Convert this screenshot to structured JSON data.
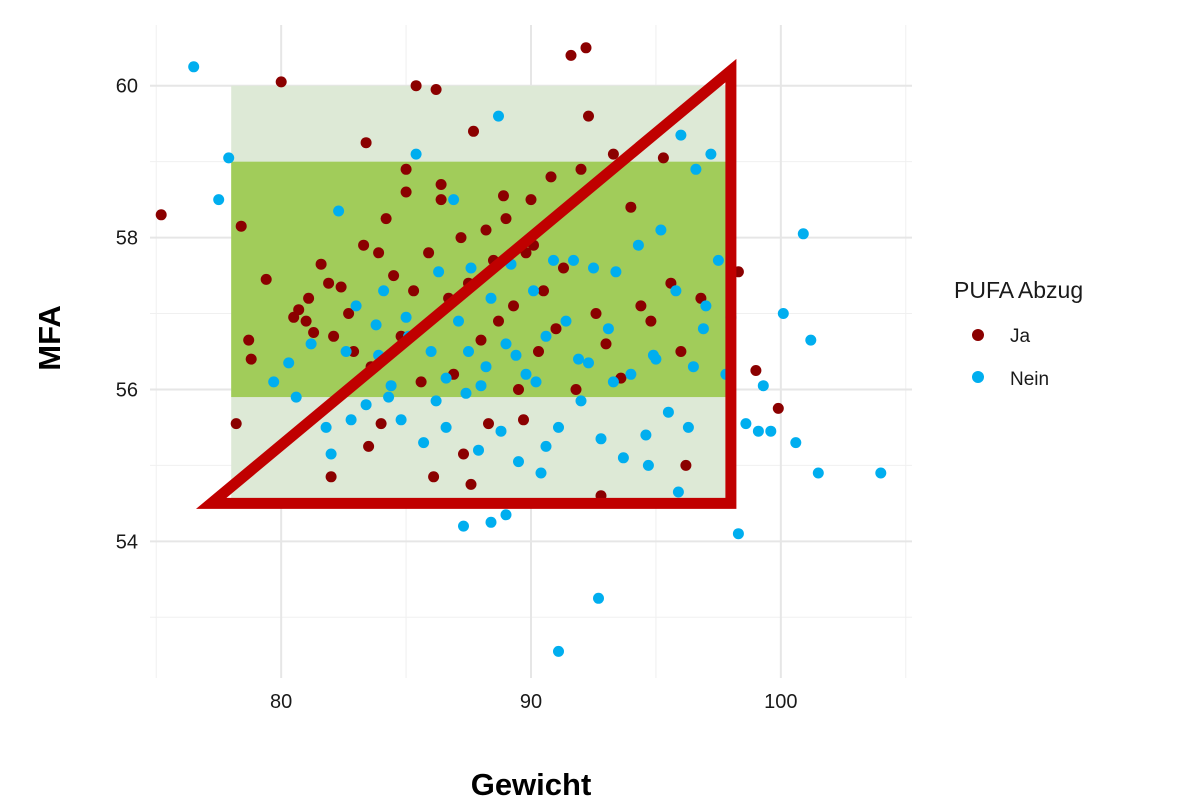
{
  "chart_data": {
    "type": "scatter",
    "title": "",
    "xlabel": "Gewicht",
    "ylabel": "MFA",
    "xlim": [
      74.75,
      105.25
    ],
    "ylim": [
      52.2,
      60.8
    ],
    "x_ticks": [
      80,
      90,
      100
    ],
    "y_ticks": [
      54,
      56,
      58,
      60
    ],
    "grid": true,
    "legend": {
      "title": "PUFA Abzug",
      "placement": "right",
      "entries": [
        {
          "label": "Ja",
          "color": "#8b0000"
        },
        {
          "label": "Nein",
          "color": "#00aeef"
        }
      ]
    },
    "annotations": {
      "light_band": {
        "x": [
          78,
          98
        ],
        "y": [
          54.5,
          60
        ],
        "color": "#dde9d6"
      },
      "dark_band": {
        "x": [
          78,
          98
        ],
        "y": [
          55.9,
          59
        ],
        "color": "#a1cc5a"
      },
      "triangle": {
        "points": [
          [
            77.2,
            54.5
          ],
          [
            98,
            54.5
          ],
          [
            98,
            60.2
          ]
        ],
        "color": "#c00000"
      }
    },
    "series": [
      {
        "name": "Ja",
        "color": "#8b0000",
        "points": [
          [
            75.2,
            58.3
          ],
          [
            78.2,
            55.55
          ],
          [
            78.4,
            58.15
          ],
          [
            78.7,
            56.65
          ],
          [
            78.8,
            56.4
          ],
          [
            79.4,
            57.45
          ],
          [
            80,
            60.05
          ],
          [
            80.5,
            56.95
          ],
          [
            80.7,
            57.05
          ],
          [
            81.0,
            56.9
          ],
          [
            81.1,
            57.2
          ],
          [
            81.3,
            56.75
          ],
          [
            81.6,
            57.65
          ],
          [
            81.9,
            57.4
          ],
          [
            82.1,
            56.7
          ],
          [
            82.4,
            57.35
          ],
          [
            82.7,
            57.0
          ],
          [
            82.9,
            56.5
          ],
          [
            83.3,
            57.9
          ],
          [
            83.6,
            56.3
          ],
          [
            83.9,
            57.8
          ],
          [
            84.2,
            58.25
          ],
          [
            84.5,
            57.5
          ],
          [
            84.8,
            56.7
          ],
          [
            85.0,
            58.6
          ],
          [
            85.3,
            57.3
          ],
          [
            85.6,
            56.1
          ],
          [
            85.9,
            57.8
          ],
          [
            86.2,
            59.95
          ],
          [
            86.4,
            58.5
          ],
          [
            86.7,
            57.2
          ],
          [
            86.9,
            56.2
          ],
          [
            87.2,
            58.0
          ],
          [
            87.5,
            57.4
          ],
          [
            87.7,
            59.4
          ],
          [
            88.0,
            56.65
          ],
          [
            88.2,
            58.1
          ],
          [
            88.5,
            57.7
          ],
          [
            88.7,
            56.9
          ],
          [
            89.0,
            58.25
          ],
          [
            89.3,
            57.1
          ],
          [
            89.5,
            56.0
          ],
          [
            89.8,
            57.8
          ],
          [
            90.0,
            58.5
          ],
          [
            90.3,
            56.5
          ],
          [
            90.5,
            57.3
          ],
          [
            90.8,
            58.8
          ],
          [
            91.0,
            56.8
          ],
          [
            91.3,
            57.6
          ],
          [
            91.6,
            60.4
          ],
          [
            92.2,
            60.5
          ],
          [
            92.3,
            59.6
          ],
          [
            92.0,
            58.9
          ],
          [
            92.6,
            57.0
          ],
          [
            93.0,
            56.6
          ],
          [
            93.3,
            59.1
          ],
          [
            93.6,
            56.15
          ],
          [
            94.0,
            58.4
          ],
          [
            94.4,
            57.1
          ],
          [
            94.8,
            56.9
          ],
          [
            95.3,
            59.05
          ],
          [
            95.6,
            57.4
          ],
          [
            96.0,
            56.5
          ],
          [
            96.2,
            55.0
          ],
          [
            96.8,
            57.2
          ],
          [
            98.3,
            57.55
          ],
          [
            99.0,
            56.25
          ],
          [
            99.9,
            55.75
          ],
          [
            83.4,
            59.25
          ],
          [
            84.0,
            55.55
          ],
          [
            85.4,
            60.0
          ],
          [
            86.1,
            54.85
          ],
          [
            87.6,
            54.75
          ],
          [
            88.3,
            55.55
          ],
          [
            92.8,
            54.6
          ],
          [
            82.0,
            54.85
          ],
          [
            83.5,
            55.25
          ],
          [
            87.3,
            55.15
          ],
          [
            89.7,
            55.6
          ],
          [
            91.8,
            56.0
          ],
          [
            85.0,
            58.9
          ],
          [
            86.4,
            58.7
          ],
          [
            88.9,
            58.55
          ],
          [
            90.1,
            57.9
          ]
        ]
      },
      {
        "name": "Nein",
        "color": "#00aeef",
        "points": [
          [
            76.5,
            60.25
          ],
          [
            77.5,
            58.5
          ],
          [
            77.9,
            59.05
          ],
          [
            79.7,
            56.1
          ],
          [
            80.3,
            56.35
          ],
          [
            80.6,
            55.9
          ],
          [
            81.2,
            56.6
          ],
          [
            81.8,
            55.5
          ],
          [
            82.0,
            55.15
          ],
          [
            82.3,
            58.35
          ],
          [
            82.6,
            56.5
          ],
          [
            83.0,
            57.1
          ],
          [
            83.4,
            55.8
          ],
          [
            83.8,
            56.85
          ],
          [
            84.1,
            57.3
          ],
          [
            84.4,
            56.05
          ],
          [
            84.8,
            55.6
          ],
          [
            85.1,
            56.7
          ],
          [
            85.4,
            59.1
          ],
          [
            85.7,
            55.3
          ],
          [
            86.0,
            56.5
          ],
          [
            86.3,
            57.55
          ],
          [
            86.6,
            55.5
          ],
          [
            86.9,
            58.5
          ],
          [
            87.1,
            56.9
          ],
          [
            87.4,
            55.95
          ],
          [
            87.6,
            57.6
          ],
          [
            87.9,
            55.2
          ],
          [
            88.2,
            56.3
          ],
          [
            88.4,
            57.2
          ],
          [
            88.7,
            59.6
          ],
          [
            89.0,
            56.6
          ],
          [
            89.2,
            57.65
          ],
          [
            89.5,
            55.05
          ],
          [
            89.8,
            56.2
          ],
          [
            90.1,
            57.3
          ],
          [
            90.4,
            54.9
          ],
          [
            90.6,
            56.7
          ],
          [
            90.9,
            57.7
          ],
          [
            91.1,
            55.5
          ],
          [
            91.4,
            56.9
          ],
          [
            91.7,
            57.7
          ],
          [
            92.0,
            55.85
          ],
          [
            92.3,
            56.35
          ],
          [
            92.5,
            57.6
          ],
          [
            92.8,
            55.35
          ],
          [
            93.1,
            56.8
          ],
          [
            93.4,
            57.55
          ],
          [
            93.7,
            55.1
          ],
          [
            94.0,
            56.2
          ],
          [
            94.3,
            57.9
          ],
          [
            94.6,
            55.4
          ],
          [
            94.9,
            56.45
          ],
          [
            95.2,
            58.1
          ],
          [
            95.5,
            55.7
          ],
          [
            95.8,
            57.3
          ],
          [
            96.0,
            59.35
          ],
          [
            96.3,
            55.5
          ],
          [
            96.6,
            58.9
          ],
          [
            96.9,
            56.8
          ],
          [
            97.2,
            59.1
          ],
          [
            97.5,
            57.7
          ],
          [
            97.8,
            56.2
          ],
          [
            98.3,
            54.1
          ],
          [
            98.6,
            55.55
          ],
          [
            99.1,
            55.45
          ],
          [
            99.6,
            55.45
          ],
          [
            100.1,
            57.0
          ],
          [
            100.6,
            55.3
          ],
          [
            100.9,
            58.05
          ],
          [
            101.2,
            56.65
          ],
          [
            101.5,
            54.9
          ],
          [
            104.0,
            54.9
          ],
          [
            87.3,
            54.2
          ],
          [
            88.4,
            54.25
          ],
          [
            89.0,
            54.35
          ],
          [
            92.7,
            53.25
          ],
          [
            91.1,
            52.55
          ],
          [
            84.3,
            55.9
          ],
          [
            85.0,
            56.95
          ],
          [
            86.6,
            56.15
          ],
          [
            87.5,
            56.5
          ],
          [
            88.0,
            56.05
          ],
          [
            89.4,
            56.45
          ],
          [
            90.2,
            56.1
          ],
          [
            91.9,
            56.4
          ],
          [
            93.3,
            56.1
          ],
          [
            95.0,
            56.4
          ],
          [
            96.5,
            56.3
          ],
          [
            97.0,
            57.1
          ],
          [
            98.0,
            56.95
          ],
          [
            99.3,
            56.05
          ],
          [
            82.8,
            55.6
          ],
          [
            83.9,
            56.45
          ],
          [
            86.2,
            55.85
          ],
          [
            88.8,
            55.45
          ],
          [
            90.6,
            55.25
          ],
          [
            94.7,
            55.0
          ],
          [
            95.9,
            54.65
          ]
        ]
      }
    ]
  }
}
